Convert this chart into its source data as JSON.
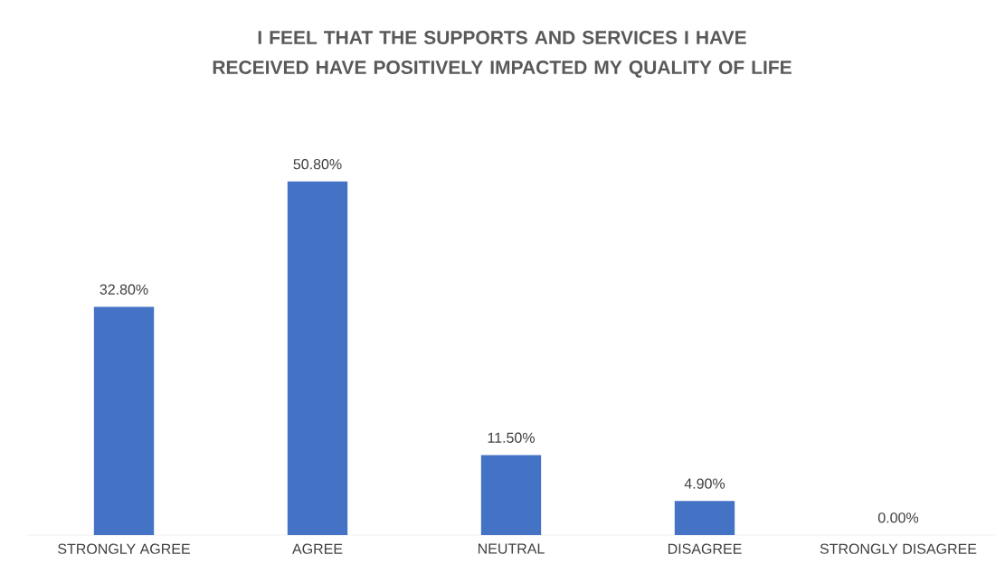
{
  "chart_data": {
    "type": "bar",
    "title": "I FEEL THAT THE SUPPORTS AND SERVICES I HAVE RECEIVED HAVE POSITIVELY IMPACTED MY QUALITY OF LIFE",
    "categories": [
      "STRONGLY AGREE",
      "AGREE",
      "NEUTRAL",
      "DISAGREE",
      "STRONGLY DISAGREE"
    ],
    "values": [
      32.8,
      50.8,
      11.5,
      4.9,
      0
    ],
    "value_labels": [
      "32.80%",
      "50.80%",
      "11.50%",
      "4.90%",
      "0.00%"
    ],
    "color": "#4472c4"
  }
}
